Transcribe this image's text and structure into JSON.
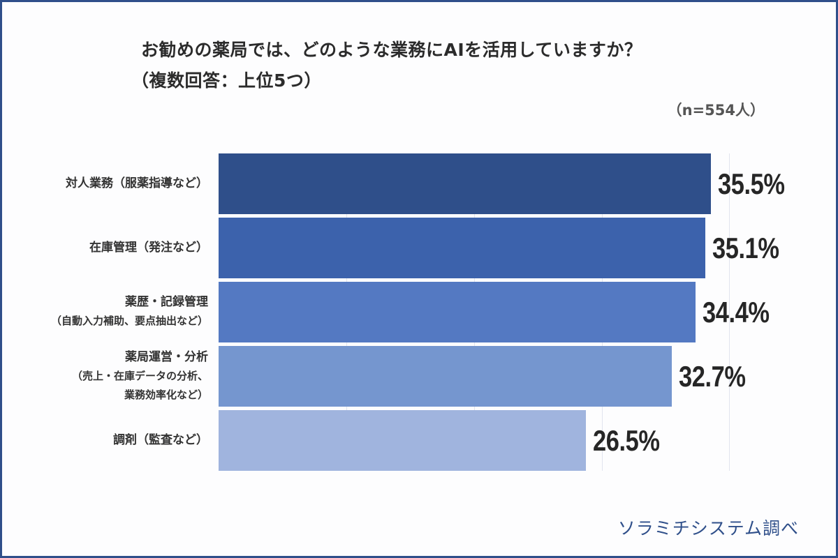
{
  "chart_data": {
    "type": "bar",
    "orientation": "horizontal",
    "title": "お勧めの薬局では、どのような業務にAIを活用していますか？",
    "subtitle": "（複数回答：上位5つ）",
    "sample_size": "（n=554人）",
    "categories": [
      "対人業務（服薬指導など）",
      "在庫管理（発注など）",
      "薬歴・記録管理（自動入力補助、要点抽出など）",
      "薬局運営・分析（売上・在庫データの分析、業務効率化など）",
      "調剤（監査など）"
    ],
    "values": [
      35.5,
      35.1,
      34.4,
      32.7,
      26.5
    ],
    "unit": "%",
    "xlabel": "",
    "ylabel": "",
    "grid": true,
    "legend": null,
    "source": "ソラミチシステム調べ"
  },
  "header": {
    "title": "お勧めの薬局では、どのような業務にAIを活用していますか？",
    "subtitle": "（複数回答：上位5つ）",
    "n_label": "（n=554人）"
  },
  "bars": [
    {
      "label_lines": [
        "対人業務（服薬指導など）"
      ],
      "value_text": "35.5%",
      "color": "#2f4f8a"
    },
    {
      "label_lines": [
        "在庫管理（発注など）"
      ],
      "value_text": "35.1%",
      "color": "#3c62ac"
    },
    {
      "label_lines": [
        "薬歴・記録管理",
        "（自動入力補助、要点抽出など）"
      ],
      "value_text": "34.4%",
      "color": "#5479c2"
    },
    {
      "label_lines": [
        "薬局運営・分析",
        "（売上・在庫データの分析、",
        "業務効率化など）"
      ],
      "value_text": "32.7%",
      "color": "#7596cf"
    },
    {
      "label_lines": [
        "調剤（監査など）"
      ],
      "value_text": "26.5%",
      "color": "#a0b4de"
    }
  ],
  "footer": {
    "source": "ソラミチシステム調べ"
  },
  "colors": {
    "frame": "#2f4f8a",
    "text": "#2b2b2b",
    "grid": "#e1e4ee"
  }
}
